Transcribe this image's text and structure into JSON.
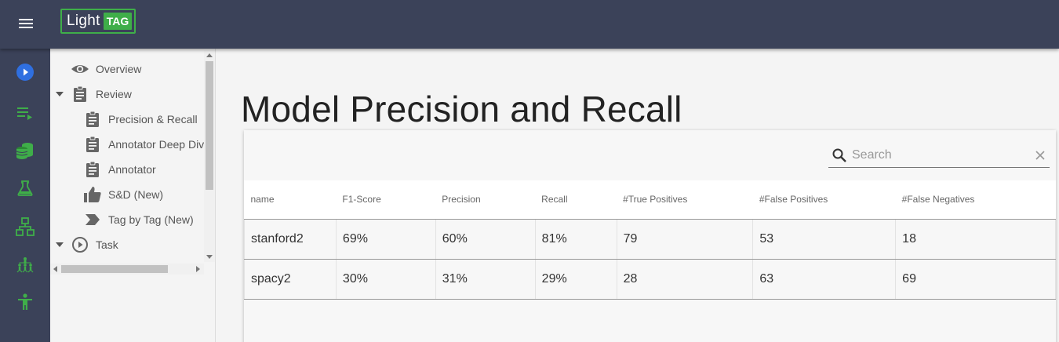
{
  "app": {
    "logo_light": "Light",
    "logo_tag": "TAG"
  },
  "rail": {
    "items": [
      {
        "icon": "play-circle-icon",
        "color": "#2f6fe0"
      },
      {
        "icon": "playlist-icon",
        "color": "#3fae49"
      },
      {
        "icon": "database-icon",
        "color": "#3fae49"
      },
      {
        "icon": "flask-icon",
        "color": "#3fae49"
      },
      {
        "icon": "hierarchy-icon",
        "color": "#3fae49"
      },
      {
        "icon": "team-tree-icon",
        "color": "#3fae49"
      },
      {
        "icon": "person-icon",
        "color": "#3fae49"
      }
    ]
  },
  "tree": {
    "items": [
      {
        "label": "Overview",
        "icon": "eye-icon"
      },
      {
        "label": "Review",
        "icon": "clipboard-icon"
      },
      {
        "label": "Precision & Recall",
        "icon": "clipboard-icon"
      },
      {
        "label": "Annotator Deep Dive",
        "icon": "clipboard-icon"
      },
      {
        "label": "Annotator",
        "icon": "clipboard-icon"
      },
      {
        "label": "S&D (New)",
        "icon": "thumb-up-icon"
      },
      {
        "label": "Tag by Tag (New)",
        "icon": "label-chevron-icon"
      },
      {
        "label": "Task",
        "icon": "play-circle-outline-icon"
      }
    ]
  },
  "main": {
    "title": "Model Precision and Recall",
    "search": {
      "placeholder": "Search",
      "value": ""
    },
    "table": {
      "headers": [
        "name",
        "F1-Score",
        "Precision",
        "Recall",
        "#True Positives",
        "#False Positives",
        "#False Negatives"
      ],
      "rows": [
        [
          "stanford2",
          "69%",
          "60%",
          "81%",
          "79",
          "53",
          "18"
        ],
        [
          "spacy2",
          "30%",
          "31%",
          "29%",
          "28",
          "63",
          "69"
        ]
      ]
    }
  },
  "colors": {
    "header_bg": "#3b4259",
    "brand_green": "#3fae49",
    "accent_blue": "#2f6fe0"
  }
}
